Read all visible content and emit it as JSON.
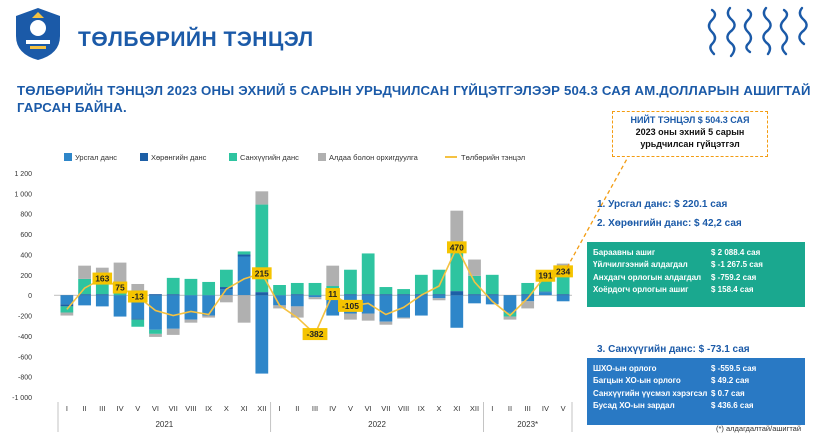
{
  "header": {
    "title": "ТӨЛБӨРИЙН ТЭНЦЭЛ",
    "headline": "ТӨЛБӨРИЙН ТЭНЦЭЛ 2023 ОНЫ ЭХНИЙ 5 САРЫН УРЬДЧИЛСАН ГҮЙЦЭТГЭЛЭЭР 504.3 САЯ АМ.ДОЛЛАРЫН АШИГТАЙ ГАРСАН БАЙНА."
  },
  "callout": {
    "line1": "НИЙТ ТЭНЦЭЛ $ 504.3 САЯ",
    "line2": "2023 оны эхний 5 сарын",
    "line3": "урьдчилсан гүйцэтгэл"
  },
  "summary": {
    "item1": "1.   Урсгал данс: $ 220.1 сая",
    "item2": "2.   Хөрөнгийн данс: $ 42,2 сая",
    "item3": "3.   Санхүүгийн данс: $ -73.1 сая"
  },
  "table_green": [
    {
      "label": "Бараавны ашиг",
      "value": "$ 2 088.4 сая"
    },
    {
      "label": "Үйлчилгээний алдагдал",
      "value": "$ -1 267.5 сая"
    },
    {
      "label": "Анхдагч орлогын алдагдал",
      "value": "$ -759.2 сая"
    },
    {
      "label": "Хоёрдогч орлогын ашиг",
      "value": "$ 158.4 сая"
    }
  ],
  "table_blue": [
    {
      "label": "ШХО-ын орлого",
      "value": "$ -559.5 сая"
    },
    {
      "label": "Багцын ХО-ын орлого",
      "value": "$ 49.2 сая"
    },
    {
      "label": "Санхүүгийн үүсмэл хэрэгсэл",
      "value": "$ 0.7 сая"
    },
    {
      "label": "Бусад ХО-ын зардал",
      "value": "$ 436.6 сая"
    }
  ],
  "footnote": "(*) алдагдалтай/ашигтай",
  "colors": {
    "current": "#2e86c9",
    "capital": "#1d5fa6",
    "financial": "#2ec4a0",
    "errors": "#b0b0b0",
    "balance": "#f5c242",
    "accent": "#1b5aa8",
    "label_bg": "#f5c400"
  },
  "chart_data": {
    "type": "bar",
    "stacked": true,
    "ylim": [
      -1000,
      1200
    ],
    "yticks": [
      "1 200",
      "1 000",
      "800",
      "600",
      "400",
      "200",
      "0",
      "-200",
      "-400",
      "-600",
      "-800",
      "-1 000"
    ],
    "months": [
      "I",
      "II",
      "III",
      "IV",
      "V",
      "VI",
      "VII",
      "VIII",
      "IX",
      "X",
      "XI",
      "XII",
      "I",
      "II",
      "III",
      "IV",
      "V",
      "VI",
      "VII",
      "VIII",
      "IX",
      "X",
      "XI",
      "XII",
      "I",
      "II",
      "III",
      "IV",
      "V"
    ],
    "years": [
      {
        "label": "2021",
        "start": 0,
        "end": 11
      },
      {
        "label": "2022",
        "start": 12,
        "end": 23
      },
      {
        "label": "2023*",
        "start": 24,
        "end": 28
      }
    ],
    "series": [
      {
        "name": "Урсгал данс",
        "values": [
          -90,
          -100,
          -110,
          -210,
          -230,
          -340,
          -330,
          -240,
          -200,
          60,
          380,
          -770,
          -100,
          -110,
          -20,
          -200,
          -180,
          -180,
          -260,
          -220,
          -200,
          -30,
          -320,
          -80,
          -90,
          -170,
          -60,
          30,
          -60
        ]
      },
      {
        "name": "Хөрөнгийн данс",
        "values": [
          -20,
          10,
          10,
          0,
          -10,
          10,
          10,
          0,
          0,
          20,
          20,
          30,
          0,
          10,
          0,
          20,
          10,
          10,
          10,
          10,
          10,
          10,
          40,
          10,
          10,
          0,
          10,
          5,
          10
        ]
      },
      {
        "name": "Санхүүгийн данс",
        "values": [
          -60,
          150,
          130,
          60,
          -70,
          -40,
          160,
          160,
          130,
          170,
          30,
          860,
          100,
          110,
          120,
          70,
          240,
          400,
          70,
          50,
          190,
          240,
          400,
          180,
          190,
          -40,
          110,
          120,
          240
        ]
      },
      {
        "name": "Алдаа болон орхигдуулга",
        "values": [
          -30,
          130,
          130,
          260,
          110,
          -30,
          -60,
          -30,
          -20,
          -70,
          -270,
          130,
          -30,
          -110,
          -20,
          200,
          -60,
          -70,
          -30,
          -10,
          0,
          -20,
          390,
          160,
          0,
          -30,
          -70,
          40,
          60
        ]
      },
      {
        "name": "Төлбөрийн тэнцэл",
        "values": [
          -140,
          70,
          163,
          75,
          -13,
          -150,
          -200,
          -160,
          -190,
          60,
          160,
          215,
          -100,
          -220,
          -382,
          11,
          -105,
          -80,
          -190,
          -120,
          0,
          90,
          470,
          130,
          -60,
          -200,
          -30,
          191,
          234
        ]
      }
    ],
    "data_labels": [
      {
        "index": 2,
        "text": "163"
      },
      {
        "index": 3,
        "text": "75"
      },
      {
        "index": 4,
        "text": "-13"
      },
      {
        "index": 11,
        "text": "215"
      },
      {
        "index": 14,
        "text": "-382"
      },
      {
        "index": 15,
        "text": "11"
      },
      {
        "index": 16,
        "text": "-105"
      },
      {
        "index": 22,
        "text": "470"
      },
      {
        "index": 27,
        "text": "191"
      },
      {
        "index": 28,
        "text": "234"
      }
    ]
  }
}
